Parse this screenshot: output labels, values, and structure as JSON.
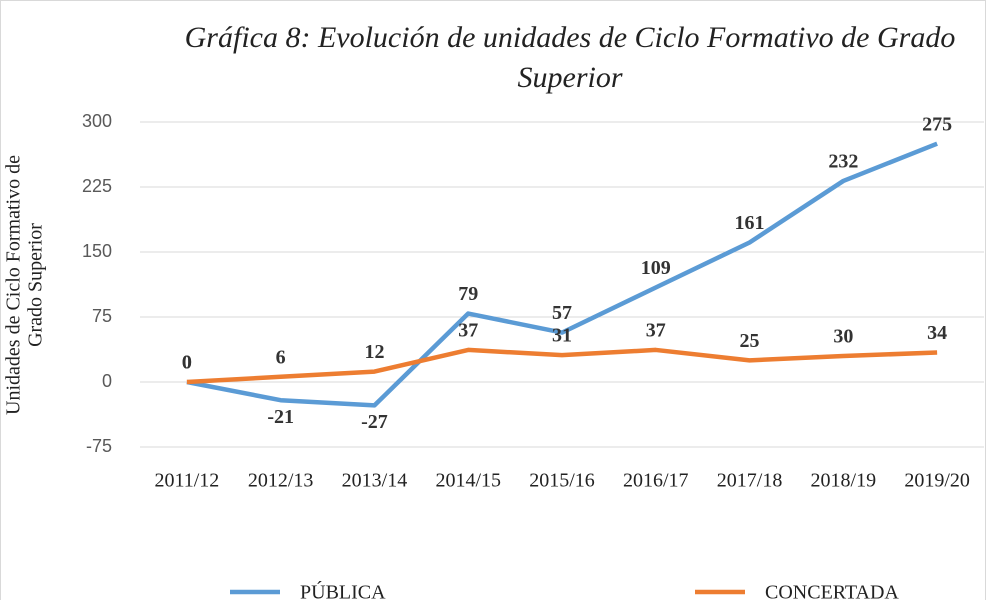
{
  "chart_data": {
    "type": "line",
    "title": "Gráfica 8: Evolución de unidades de Ciclo Formativo de Grado Superior",
    "title_lines": [
      "Gráfica 8: Evolución de unidades de Ciclo Formativo de Grado",
      "Superior"
    ],
    "y_label_lines": [
      "Unidades de Ciclo Formativo de",
      "Grado Superior"
    ],
    "categories": [
      "2011/12",
      "2012/13",
      "2013/14",
      "2014/15",
      "2015/16",
      "2016/17",
      "2017/18",
      "2018/19",
      "2019/20"
    ],
    "series": [
      {
        "name": "PÚBLICA",
        "color": "#5b9bd5",
        "values": [
          0,
          -21,
          -27,
          79,
          57,
          109,
          161,
          232,
          275
        ]
      },
      {
        "name": "CONCERTADA",
        "color": "#ed7d31",
        "values": [
          0,
          6,
          12,
          37,
          31,
          37,
          25,
          30,
          34
        ]
      }
    ],
    "ylim": [
      -75,
      300
    ],
    "yticks": [
      -75,
      0,
      75,
      150,
      225,
      300
    ],
    "grid": true,
    "legend": "bottom"
  }
}
